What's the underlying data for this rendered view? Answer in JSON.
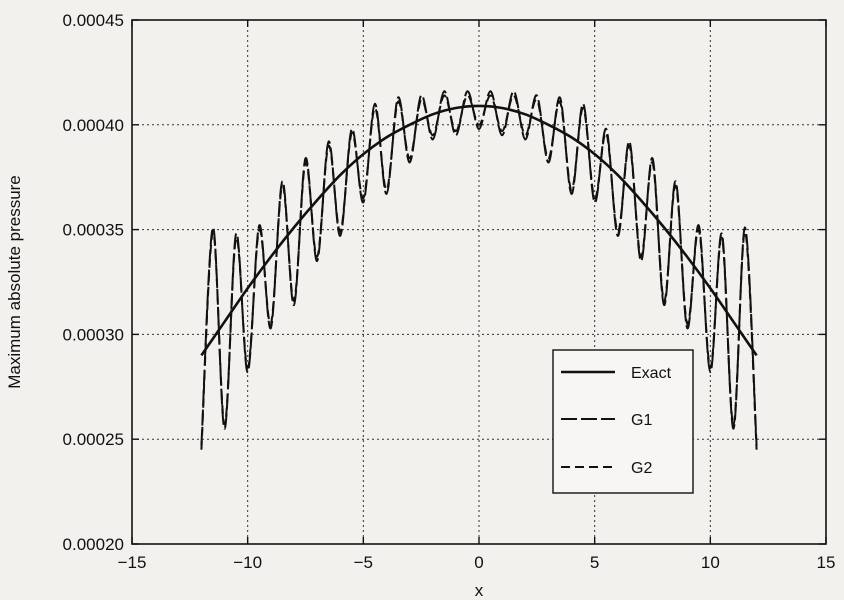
{
  "chart_data": {
    "type": "line",
    "xlabel": "x",
    "ylabel": "Maximum absolute pressure",
    "xlim": [
      -15,
      15
    ],
    "ylim": [
      0.0002,
      0.00045
    ],
    "x_ticks": [
      -15,
      -10,
      -5,
      0,
      5,
      10,
      15
    ],
    "x_tick_labels": [
      "−15",
      "−10",
      "−5",
      "0",
      "5",
      "10",
      "15"
    ],
    "y_ticks": [
      0.0002,
      0.00025,
      0.0003,
      0.00035,
      0.0004,
      0.00045
    ],
    "y_tick_labels": [
      "0.00020",
      "0.00025",
      "0.00030",
      "0.00035",
      "0.00040",
      "0.00045"
    ],
    "grid": true,
    "legend_position": "lower-right",
    "series": [
      {
        "name": "Exact",
        "style": "solid",
        "x": [
          -12,
          -11,
          -10,
          -9,
          -8,
          -7,
          -6,
          -5,
          -4,
          -3,
          -2,
          -1,
          0,
          1,
          2,
          3,
          4,
          5,
          6,
          7,
          8,
          9,
          10,
          11,
          12
        ],
        "y": [
          0.00029,
          0.000306,
          0.000322,
          0.000337,
          0.000351,
          0.000364,
          0.000376,
          0.000386,
          0.000394,
          0.0004,
          0.000405,
          0.000408,
          0.000409,
          0.000408,
          0.000405,
          0.0004,
          0.000394,
          0.000386,
          0.000376,
          0.000364,
          0.000351,
          0.000337,
          0.000322,
          0.000306,
          0.00029
        ]
      },
      {
        "name": "G1",
        "style": "long-dash",
        "x": [
          -12.0,
          -11.5,
          -11.0,
          -10.5,
          -10.0,
          -9.5,
          -9.0,
          -8.5,
          -8.0,
          -7.5,
          -7.0,
          -6.5,
          -6.0,
          -5.5,
          -5.0,
          -4.5,
          -4.0,
          -3.5,
          -3.0,
          -2.5,
          -2.0,
          -1.5,
          -1.0,
          -0.5,
          0.0,
          0.5,
          1.0,
          1.5,
          2.0,
          2.5,
          3.0,
          3.5,
          4.0,
          4.5,
          5.0,
          5.5,
          6.0,
          6.5,
          7.0,
          7.5,
          8.0,
          8.5,
          9.0,
          9.5,
          10.0,
          10.5,
          11.0,
          11.5,
          12.0
        ],
        "y": [
          0.000247,
          0.000351,
          0.000255,
          0.000348,
          0.000282,
          0.000352,
          0.000303,
          0.000373,
          0.000314,
          0.000384,
          0.000335,
          0.000392,
          0.000347,
          0.000398,
          0.000363,
          0.00041,
          0.000367,
          0.000413,
          0.000382,
          0.000414,
          0.000393,
          0.000416,
          0.000395,
          0.000416,
          0.000398,
          0.000416,
          0.000395,
          0.000416,
          0.000393,
          0.000414,
          0.000382,
          0.000413,
          0.000367,
          0.00041,
          0.000363,
          0.000398,
          0.000347,
          0.000392,
          0.000335,
          0.000384,
          0.000314,
          0.000373,
          0.000303,
          0.000352,
          0.000282,
          0.000348,
          0.000255,
          0.000351,
          0.000247
        ]
      },
      {
        "name": "G2",
        "style": "dash",
        "x": [
          -12.0,
          -11.5,
          -11.0,
          -10.5,
          -10.0,
          -9.5,
          -9.0,
          -8.5,
          -8.0,
          -7.5,
          -7.0,
          -6.5,
          -6.0,
          -5.5,
          -5.0,
          -4.5,
          -4.0,
          -3.5,
          -3.0,
          -2.5,
          -2.0,
          -1.5,
          -1.0,
          -0.5,
          0.0,
          0.5,
          1.0,
          1.5,
          2.0,
          2.5,
          3.0,
          3.5,
          4.0,
          4.5,
          5.0,
          5.5,
          6.0,
          6.5,
          7.0,
          7.5,
          8.0,
          8.5,
          9.0,
          9.5,
          10.0,
          10.5,
          11.0,
          11.5,
          12.0
        ],
        "y": [
          0.000245,
          0.000349,
          0.000257,
          0.000346,
          0.000284,
          0.00035,
          0.000305,
          0.000371,
          0.000316,
          0.000382,
          0.000337,
          0.00039,
          0.000349,
          0.000396,
          0.000365,
          0.000408,
          0.000369,
          0.000411,
          0.000384,
          0.000412,
          0.000395,
          0.000414,
          0.000397,
          0.000414,
          0.0004,
          0.000414,
          0.000397,
          0.000414,
          0.000395,
          0.000412,
          0.000384,
          0.000411,
          0.000369,
          0.000408,
          0.000365,
          0.000396,
          0.000349,
          0.00039,
          0.000337,
          0.000382,
          0.000316,
          0.000371,
          0.000305,
          0.00035,
          0.000284,
          0.000346,
          0.000257,
          0.000349,
          0.000245
        ]
      }
    ]
  }
}
